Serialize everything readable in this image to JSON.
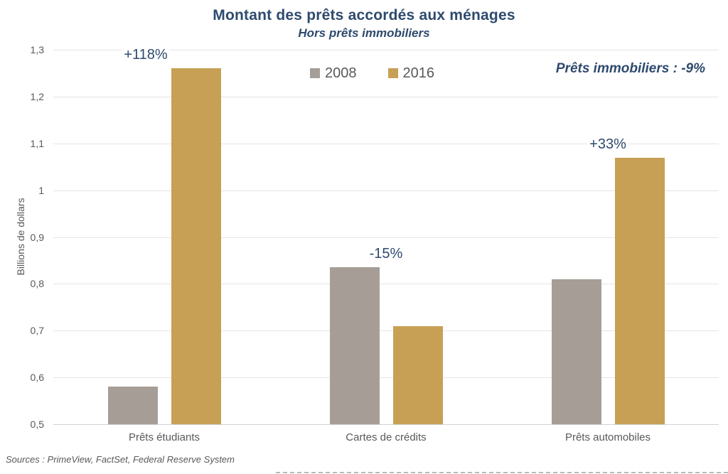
{
  "page": {
    "source_note": "Sources : PrimeView, FactSet, Federal Reserve System"
  },
  "chart_data": {
    "type": "bar",
    "title": "Montant des prêts accordés aux ménages",
    "subtitle": "Hors prêts immobiliers",
    "annotation": "Prêts immobiliers : -9%",
    "categories": [
      "Prêts étudiants",
      "Cartes de crédits",
      "Prêts automobiles"
    ],
    "series": [
      {
        "name": "2008",
        "color": "#a69e96",
        "values": [
          0.58,
          0.835,
          0.81
        ]
      },
      {
        "name": "2016",
        "color": "#c7a055",
        "values": [
          1.26,
          0.71,
          1.07
        ]
      }
    ],
    "bar_annotations": [
      "+118%",
      "-15%",
      "+33%"
    ],
    "ylabel": "Billions de dollars",
    "ylim": [
      0.5,
      1.3
    ],
    "ytick_step": 0.1,
    "ytick_labels": [
      "1,3",
      "1,2",
      "1,1",
      "1",
      "0,9",
      "0,8",
      "0,7",
      "0,6",
      "0,5"
    ],
    "grid": true,
    "legend_position": "top-center"
  },
  "colors": {
    "title_navy": "#2e4a6e",
    "axis_text_gray": "#595959",
    "gridline": "#e4e4e4",
    "axis_line": "#d2d2d2",
    "series_2008": "#a69e96",
    "series_2016": "#c7a055"
  }
}
